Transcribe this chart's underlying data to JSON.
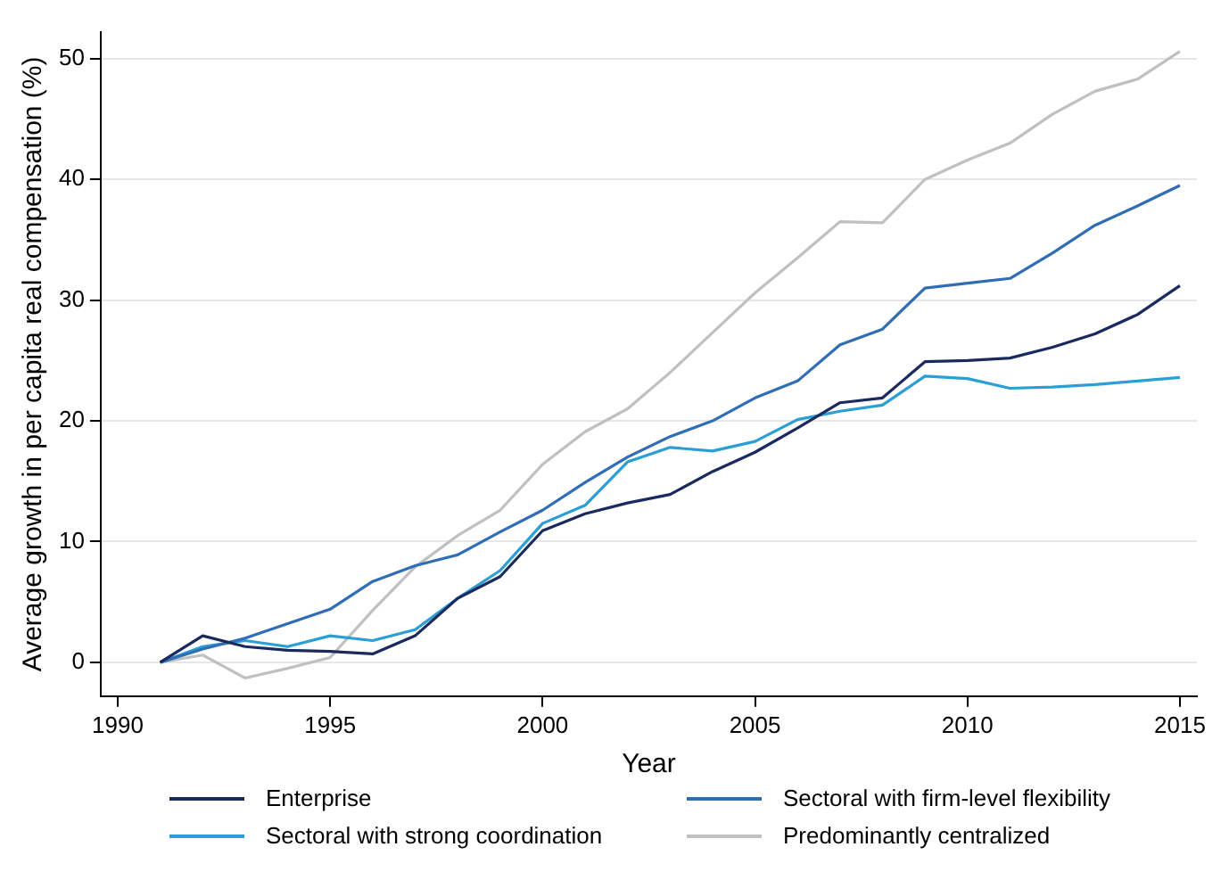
{
  "chart_data": {
    "type": "line",
    "xlabel": "Year",
    "ylabel": "Average growth in per capita real compensation (%)",
    "x": [
      1991,
      1992,
      1993,
      1994,
      1995,
      1996,
      1997,
      1998,
      1999,
      2000,
      2001,
      2002,
      2003,
      2004,
      2005,
      2006,
      2007,
      2008,
      2009,
      2010,
      2011,
      2012,
      2013,
      2014,
      2015
    ],
    "series": [
      {
        "name": "Enterprise",
        "color": "#1a2a5e",
        "values": [
          0,
          2.2,
          1.3,
          1.0,
          0.9,
          0.7,
          2.2,
          5.3,
          7.1,
          10.9,
          12.3,
          13.2,
          13.9,
          15.8,
          17.4,
          19.4,
          21.5,
          21.9,
          24.9,
          25.0,
          25.2,
          26.1,
          27.2,
          28.8,
          31.2
        ]
      },
      {
        "name": "Sectoral with firm-level flexibility",
        "color": "#2f6db5",
        "values": [
          0,
          1.1,
          2.0,
          3.2,
          4.4,
          6.7,
          8.0,
          8.9,
          10.8,
          12.6,
          14.9,
          17.0,
          18.7,
          20.0,
          21.9,
          23.3,
          26.3,
          27.6,
          31.0,
          31.4,
          31.8,
          33.9,
          36.2,
          37.8,
          39.5
        ]
      },
      {
        "name": "Sectoral with strong coordination",
        "color": "#2a9fd6",
        "values": [
          0,
          1.3,
          1.8,
          1.3,
          2.2,
          1.8,
          2.7,
          5.3,
          7.6,
          11.5,
          13.0,
          16.6,
          17.8,
          17.5,
          18.3,
          20.1,
          20.8,
          21.3,
          23.7,
          23.5,
          22.7,
          22.8,
          23.0,
          23.3,
          23.6
        ]
      },
      {
        "name": "Predominantly centralized",
        "color": "#c0c0c0",
        "values": [
          0,
          0.6,
          -1.3,
          -0.5,
          0.4,
          4.3,
          7.9,
          10.5,
          12.6,
          16.4,
          19.1,
          21.0,
          24.0,
          27.3,
          30.6,
          33.5,
          36.5,
          36.4,
          40.0,
          41.6,
          43.0,
          45.4,
          47.3,
          48.3,
          50.6
        ]
      }
    ],
    "xlim": [
      1989.6,
      2015.4
    ],
    "xticks": [
      1990,
      1995,
      2000,
      2005,
      2010,
      2015
    ],
    "ylim": [
      -2.8,
      52.2
    ],
    "yticks": [
      0,
      10,
      20,
      30,
      40,
      50
    ],
    "grid": "y",
    "legend": "bottom",
    "marker": "none",
    "line_style": "solid"
  }
}
